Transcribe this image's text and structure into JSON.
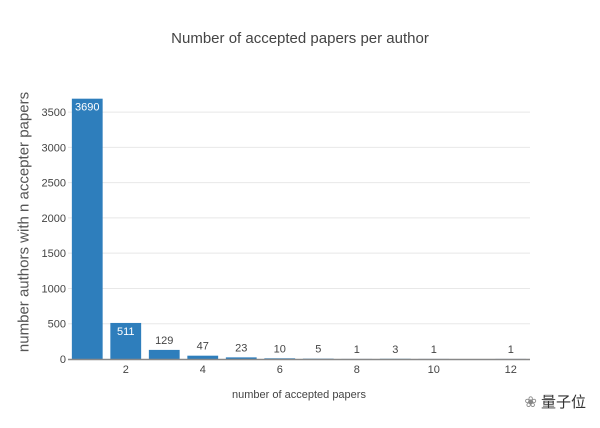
{
  "chart_data": {
    "type": "bar",
    "title": "Number of accepted papers per author",
    "xlabel": "number of accepted papers",
    "ylabel": "number authors with n accepter papers",
    "x": [
      1,
      2,
      3,
      4,
      5,
      6,
      7,
      8,
      9,
      10,
      12
    ],
    "values": [
      3690,
      511,
      129,
      47,
      23,
      10,
      5,
      1,
      3,
      1,
      1
    ],
    "xlim": [
      0.5,
      12.5
    ],
    "ylim": [
      0,
      3884
    ],
    "xticks": [
      2,
      4,
      6,
      8,
      10,
      12
    ],
    "yticks": [
      0,
      500,
      1000,
      1500,
      2000,
      2500,
      3000,
      3500
    ],
    "grid": true,
    "bar_color": "#2e7ebc"
  },
  "watermark": "量子位"
}
